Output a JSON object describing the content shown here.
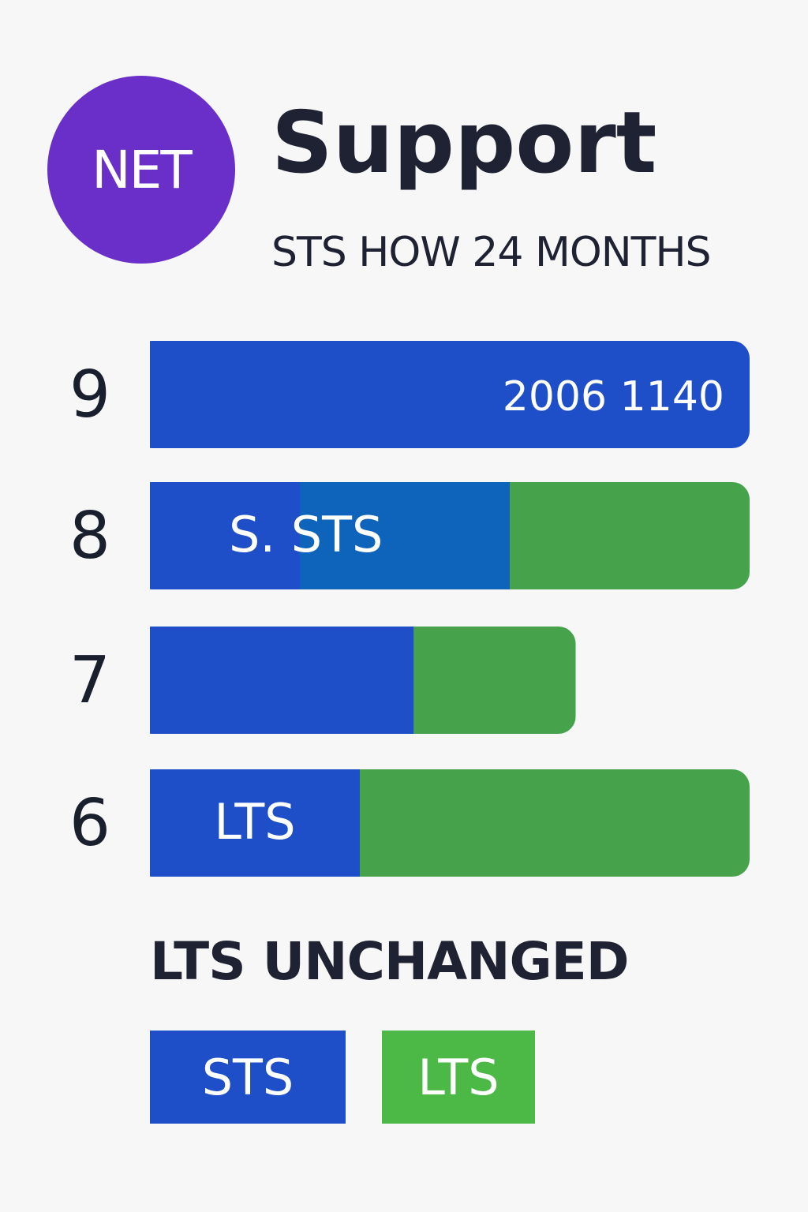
{
  "header": {
    "logo_text": "NET",
    "title": "Support",
    "subtitle": "STS HOW 24 MONTHS"
  },
  "colors": {
    "sts": "#1f4fc8",
    "lts": "#46a34c",
    "overlap": "#0a6bb6",
    "logo": "#6b2fc9"
  },
  "chart_data": {
    "type": "bar",
    "orientation": "horizontal",
    "stacked": true,
    "categories": [
      "9",
      "8",
      "7",
      "6"
    ],
    "series": [
      {
        "name": "STS",
        "values": [
          100,
          60,
          44,
          35
        ]
      },
      {
        "name": "LTS",
        "values": [
          0,
          40,
          27,
          65
        ]
      }
    ],
    "bar_labels": [
      "2006 1140",
      "S. STS",
      "",
      "LTS"
    ],
    "xlim": [
      0,
      100
    ],
    "grid": false,
    "legend": "bottom"
  },
  "note": "LTS UNCHANGED",
  "legend": {
    "sts_label": "STS",
    "lts_label": "LTS"
  }
}
